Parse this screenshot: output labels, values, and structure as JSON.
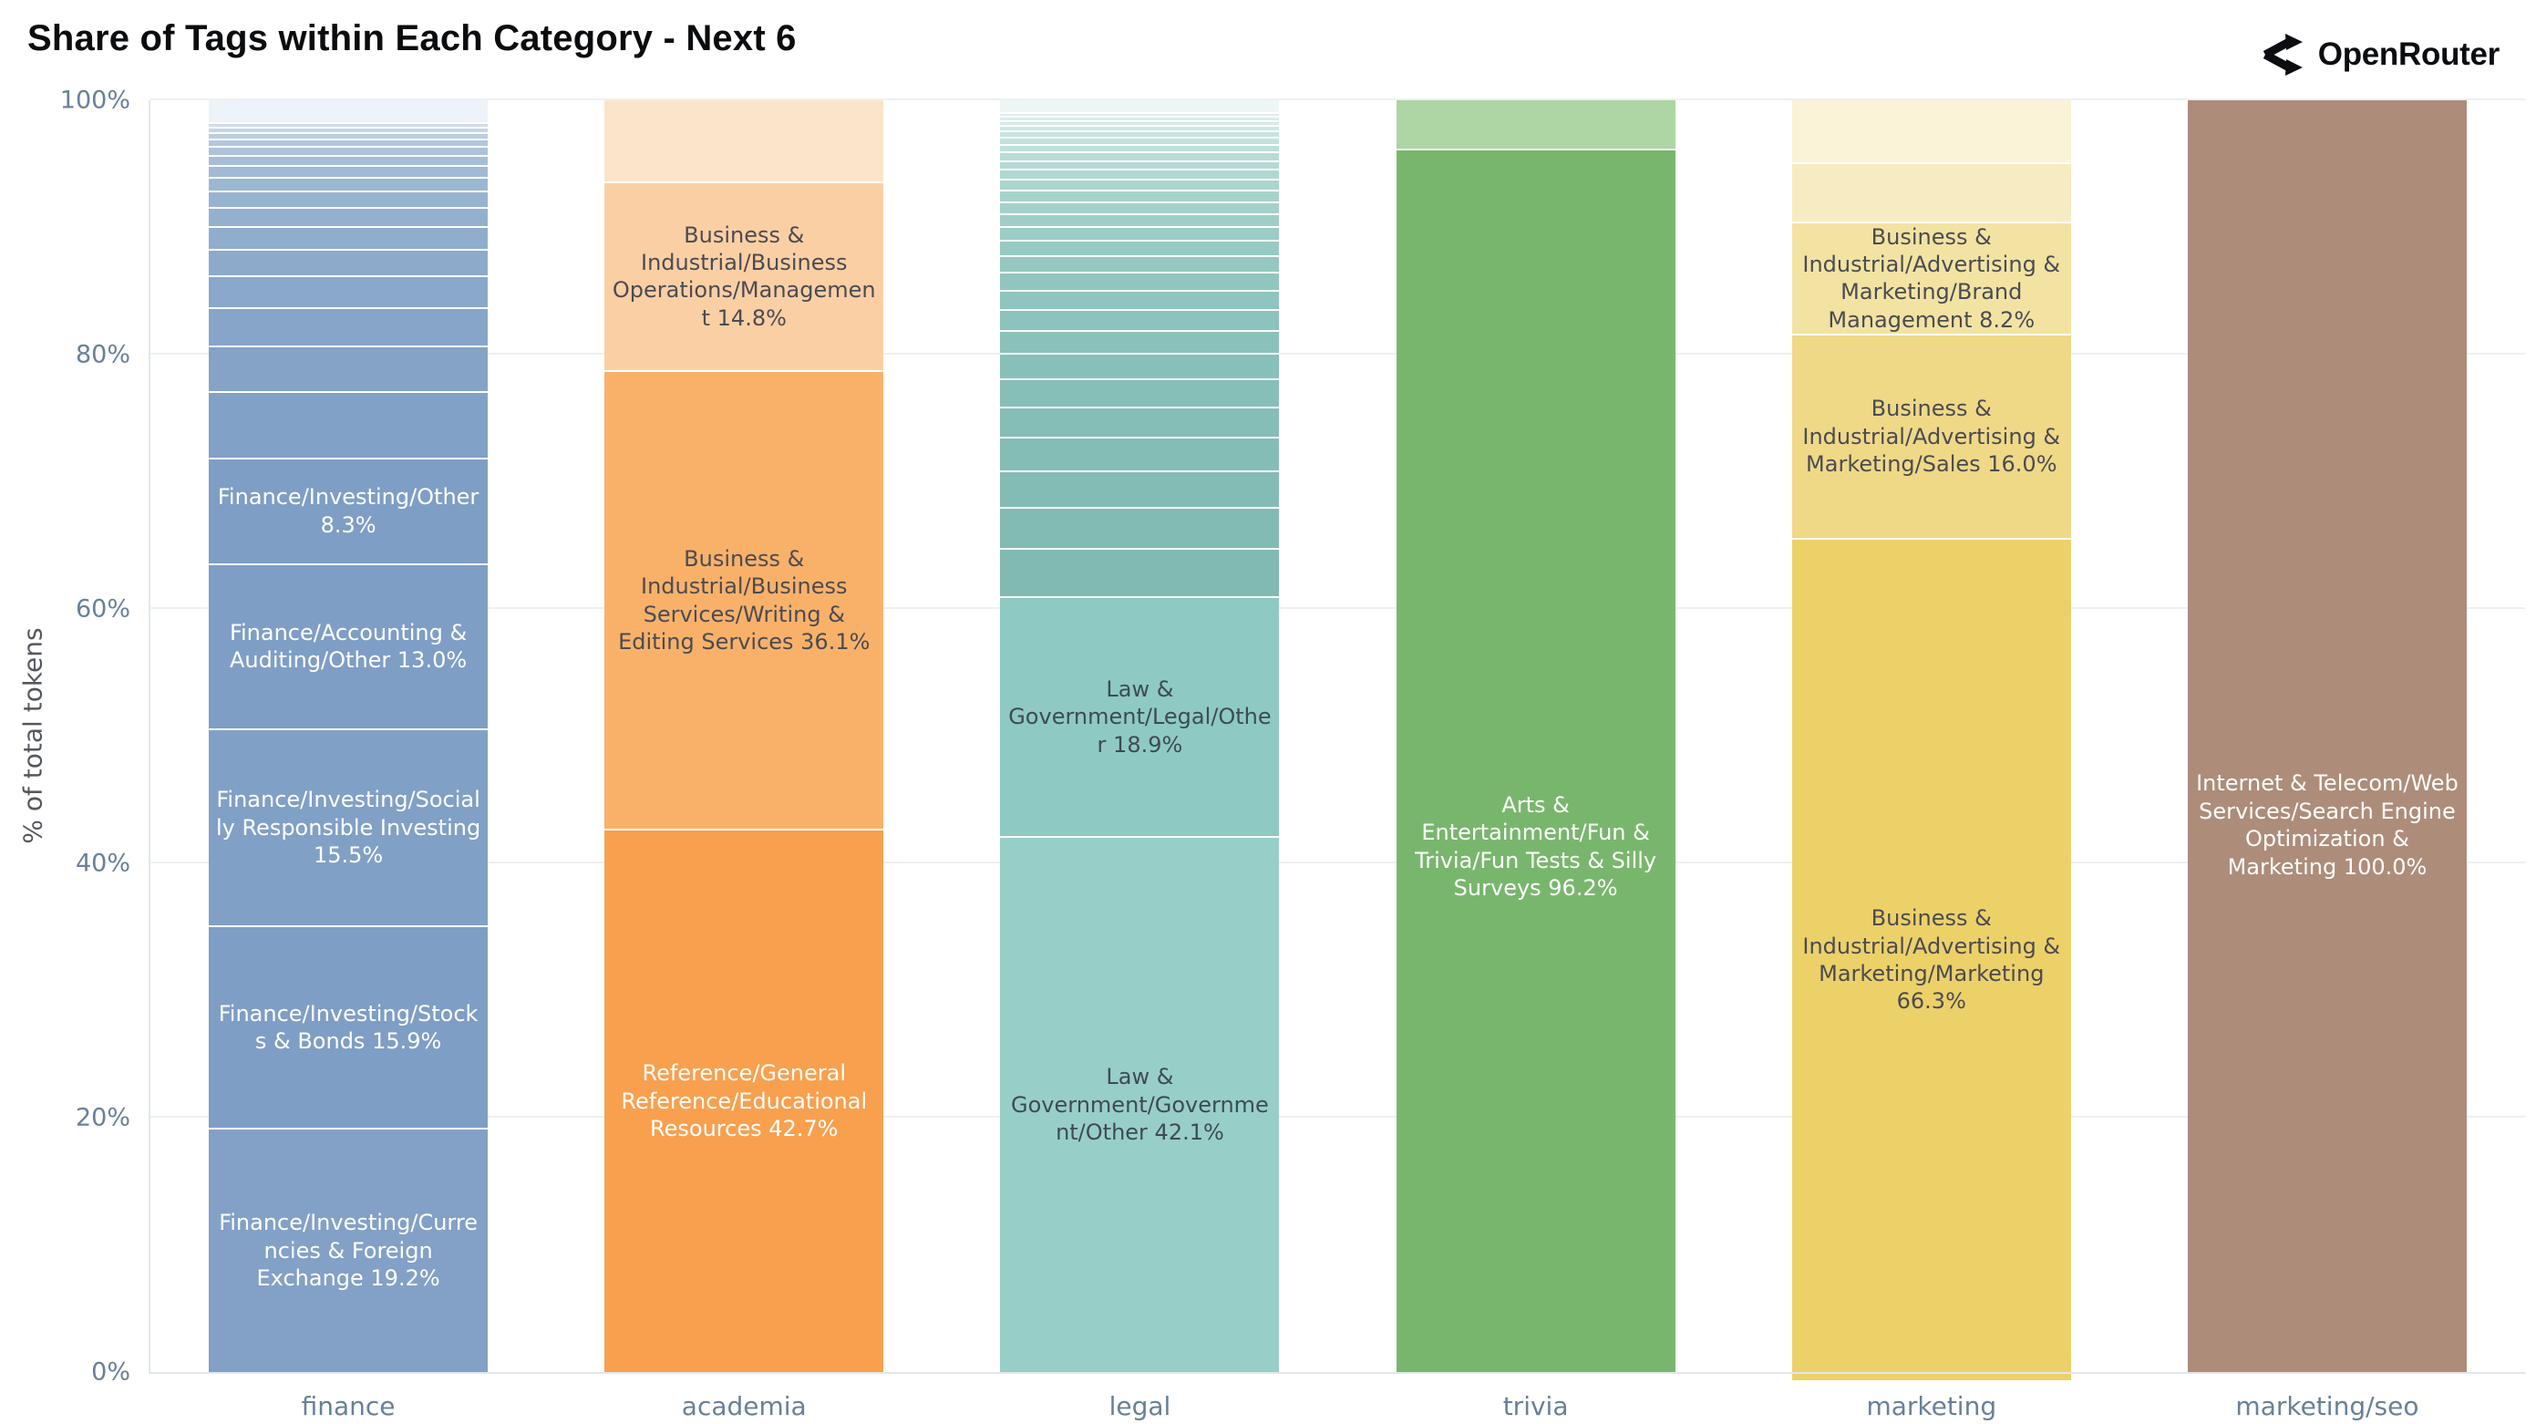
{
  "header": {
    "brand": "OpenRouter"
  },
  "chart_data": {
    "type": "bar",
    "stacked": true,
    "title": "Share of Tags within Each Category - Next 6",
    "xlabel": "",
    "ylabel": "% of total tokens",
    "ylim": [
      0,
      100
    ],
    "grid": true,
    "legend": false,
    "yticks": [
      "0%",
      "20%",
      "40%",
      "60%",
      "80%",
      "100%"
    ],
    "categories": [
      "finance",
      "academia",
      "legal",
      "trivia",
      "marketing",
      "marketing/seo"
    ],
    "bars": [
      {
        "category": "finance",
        "segments_top_to_bottom": [
          {
            "pct": 1.7,
            "color": "#eef3f9"
          },
          {
            "pct": 0.4,
            "color": "#cfdcea"
          },
          {
            "pct": 0.4,
            "color": "#c4d5e5"
          },
          {
            "pct": 0.5,
            "color": "#bccee1"
          },
          {
            "pct": 0.6,
            "color": "#b3c8dd"
          },
          {
            "pct": 0.7,
            "color": "#acc3da"
          },
          {
            "pct": 0.8,
            "color": "#a6bfd7"
          },
          {
            "pct": 0.9,
            "color": "#a0bad5"
          },
          {
            "pct": 1.1,
            "color": "#9cb7d2"
          },
          {
            "pct": 1.3,
            "color": "#97b3d0"
          },
          {
            "pct": 1.5,
            "color": "#94b0cf"
          },
          {
            "pct": 1.8,
            "color": "#90adcd"
          },
          {
            "pct": 2.1,
            "color": "#8daacb"
          },
          {
            "pct": 2.5,
            "color": "#8aa8ca"
          },
          {
            "pct": 3.0,
            "color": "#87a5c9"
          },
          {
            "pct": 3.6,
            "color": "#84a3c7"
          },
          {
            "pct": 5.2,
            "color": "#82a1c6"
          },
          {
            "pct": 8.3,
            "label": "Finance/Investing/Other 8.3%",
            "color": "#7f9ec5",
            "text_color": "#ffffff"
          },
          {
            "pct": 13.0,
            "label": "Finance/Accounting & Auditing/Other 13.0%",
            "color": "#7f9ec5",
            "text_color": "#ffffff"
          },
          {
            "pct": 15.5,
            "label": "Finance/Investing/Socially Responsible Investing 15.5%",
            "color": "#81a0c6",
            "text_color": "#ffffff"
          },
          {
            "pct": 15.9,
            "label": "Finance/Investing/Stocks & Bonds 15.9%",
            "color": "#7f9ec5",
            "text_color": "#ffffff"
          },
          {
            "pct": 19.2,
            "label": "Finance/Investing/Currencies & Foreign Exchange 19.2%",
            "color": "#83a1c6",
            "text_color": "#ffffff"
          }
        ]
      },
      {
        "category": "academia",
        "segments_top_to_bottom": [
          {
            "pct": 6.4,
            "color": "#fce4ca"
          },
          {
            "pct": 14.8,
            "label": "Business & Industrial/Business Operations/Management 14.8%",
            "color": "#fbcfa4",
            "text_color": "#4b4b53"
          },
          {
            "pct": 36.1,
            "label": "Business & Industrial/Business Services/Writing & Editing Services 36.1%",
            "color": "#f9b169",
            "text_color": "#4b4b53"
          },
          {
            "pct": 42.7,
            "label": "Reference/General Reference/Educational Resources 42.7%",
            "color": "#f8a04e",
            "text_color": "#ffffff"
          }
        ]
      },
      {
        "category": "legal",
        "segments_top_to_bottom": [
          {
            "pct": 0.9,
            "color": "#eef6f5"
          },
          {
            "pct": 0.3,
            "color": "#dcefec"
          },
          {
            "pct": 0.35,
            "color": "#d7ece9"
          },
          {
            "pct": 0.4,
            "color": "#d2eae6"
          },
          {
            "pct": 0.45,
            "color": "#cde7e3"
          },
          {
            "pct": 0.5,
            "color": "#c8e4e0"
          },
          {
            "pct": 0.55,
            "color": "#c3e2dd"
          },
          {
            "pct": 0.6,
            "color": "#bedfda"
          },
          {
            "pct": 0.65,
            "color": "#b9dcd7"
          },
          {
            "pct": 0.7,
            "color": "#b5dad5"
          },
          {
            "pct": 0.8,
            "color": "#b0d7d2"
          },
          {
            "pct": 0.85,
            "color": "#abd5cf"
          },
          {
            "pct": 0.9,
            "color": "#a7d2cc"
          },
          {
            "pct": 0.95,
            "color": "#a3d0ca"
          },
          {
            "pct": 1.0,
            "color": "#9fcec8"
          },
          {
            "pct": 1.1,
            "color": "#9bccc5"
          },
          {
            "pct": 1.2,
            "color": "#97cac3"
          },
          {
            "pct": 1.3,
            "color": "#94c8c1"
          },
          {
            "pct": 1.4,
            "color": "#91c6bf"
          },
          {
            "pct": 1.5,
            "color": "#8ec5be"
          },
          {
            "pct": 1.7,
            "color": "#8cc3bc"
          },
          {
            "pct": 1.8,
            "color": "#8ac2bb"
          },
          {
            "pct": 2.0,
            "color": "#88c0b9"
          },
          {
            "pct": 2.2,
            "color": "#86bfb8"
          },
          {
            "pct": 2.4,
            "color": "#85beb7"
          },
          {
            "pct": 2.6,
            "color": "#84bdb6"
          },
          {
            "pct": 2.9,
            "color": "#83bcb5"
          },
          {
            "pct": 3.2,
            "color": "#82bbb4"
          },
          {
            "pct": 3.8,
            "color": "#81bab3"
          },
          {
            "pct": 18.9,
            "label": "Law & Government/Legal/Other 18.9%",
            "color": "#8ecac3",
            "text_color": "#3f4a55"
          },
          {
            "pct": 42.1,
            "label": "Law & Government/Government/Other 42.1%",
            "color": "#97cfc8",
            "text_color": "#3f4a55"
          }
        ]
      },
      {
        "category": "trivia",
        "segments_top_to_bottom": [
          {
            "pct": 3.8,
            "color": "#aed5a4"
          },
          {
            "pct": 96.2,
            "label": "Arts & Entertainment/Fun & Trivia/Fun Tests & Silly Surveys 96.2%",
            "color": "#79b66d",
            "text_color": "#ffffff"
          }
        ]
      },
      {
        "category": "marketing",
        "segments_top_to_bottom": [
          {
            "pct": 4.9,
            "color": "#fbf3d8"
          },
          {
            "pct": 4.6,
            "color": "#f7ecc1"
          },
          {
            "pct": 8.2,
            "label": "Business & Industrial/Advertising & Marketing/Brand Management 8.2%",
            "color": "#f3e3a2",
            "text_color": "#4b4b53"
          },
          {
            "pct": 16.0,
            "label": "Business & Industrial/Advertising & Marketing/Sales 16.0%",
            "color": "#efd987",
            "text_color": "#4b4b53"
          },
          {
            "pct": 66.3,
            "label": "Business & Industrial/Advertising & Marketing/Marketing 66.3%",
            "color": "#ecd169",
            "text_color": "#4b4b53"
          }
        ]
      },
      {
        "category": "marketing/seo",
        "segments_top_to_bottom": [
          {
            "pct": 100.0,
            "label": "Internet & Telecom/Web Services/Search Engine Optimization & Marketing 100.0%",
            "color": "#ad8d7a",
            "text_color": "#ffffff"
          }
        ]
      }
    ]
  }
}
